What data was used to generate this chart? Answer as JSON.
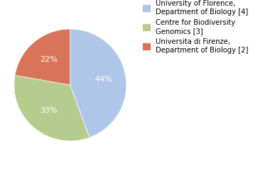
{
  "slices": [
    44,
    33,
    22
  ],
  "legend_labels": [
    "University of Florence,\nDepartment of Biology [4]",
    "Centre for Biodiversity\nGenomics [3]",
    "Universita di Firenze,\nDepartment of Biology [2]"
  ],
  "colors": [
    "#aec6e8",
    "#b5cc8e",
    "#d9735a"
  ],
  "pct_labels": [
    "44%",
    "33%",
    "22%"
  ],
  "startangle": 90,
  "background_color": "#ffffff",
  "text_color": "#ffffff",
  "label_fontsize": 8,
  "legend_fontsize": 7.2
}
